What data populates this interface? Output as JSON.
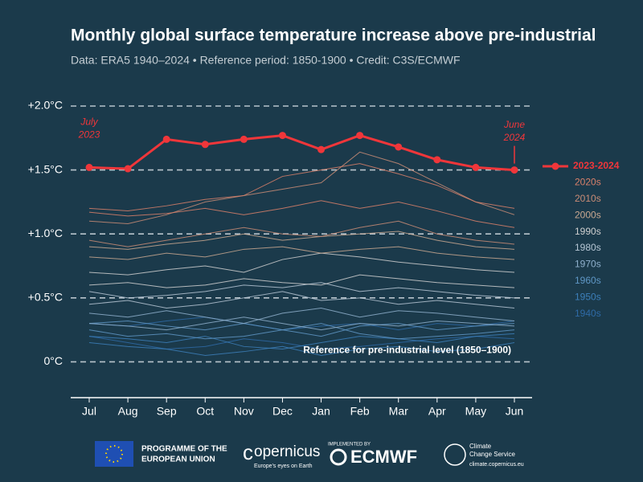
{
  "chart_data": {
    "type": "line",
    "title": "Monthly global surface temperature increase above pre-industrial",
    "subtitle": "Data: ERA5 1940–2024  •  Reference period: 1850-1900  •  Credit: C3S/ECMWF",
    "categories": [
      "Jul",
      "Aug",
      "Sep",
      "Oct",
      "Nov",
      "Dec",
      "Jan",
      "Feb",
      "Mar",
      "Apr",
      "May",
      "Jun"
    ],
    "ylim": [
      -0.28,
      2.0
    ],
    "yticks": [
      {
        "value": 0,
        "label": "0°C"
      },
      {
        "value": 0.5,
        "label": "+0.5°C"
      },
      {
        "value": 1.0,
        "label": "+1.0°C"
      },
      {
        "value": 1.5,
        "label": "+1.5°C"
      },
      {
        "value": 2.0,
        "label": "+2.0°C"
      }
    ],
    "grid": true,
    "legend": "right",
    "annotations": {
      "start": [
        "July",
        "2023"
      ],
      "end": [
        "June",
        "2024"
      ],
      "reference": "Reference for pre-industrial level (1850–1900)"
    },
    "series": [
      {
        "name": "2023-2024",
        "color": "#f0363a",
        "values": [
          1.52,
          1.51,
          1.74,
          1.7,
          1.74,
          1.77,
          1.66,
          1.77,
          1.68,
          1.58,
          1.52,
          1.5
        ]
      },
      {
        "name": "2020s",
        "color": "#d9806a",
        "lines": [
          [
            1.2,
            1.18,
            1.22,
            1.27,
            1.3,
            1.45,
            1.5,
            1.55,
            1.47,
            1.38,
            1.25,
            1.2
          ],
          [
            1.17,
            1.14,
            1.16,
            1.2,
            1.15,
            1.2,
            1.26,
            1.2,
            1.25,
            1.18,
            1.1,
            1.05
          ]
        ]
      },
      {
        "name": "2010s",
        "color": "#c98c76",
        "lines": [
          [
            1.1,
            1.08,
            1.15,
            1.25,
            1.3,
            1.35,
            1.4,
            1.64,
            1.55,
            1.4,
            1.25,
            1.15
          ],
          [
            0.95,
            0.9,
            0.95,
            1.0,
            1.05,
            1.0,
            0.98,
            1.05,
            1.1,
            1.0,
            0.95,
            0.92
          ]
        ]
      },
      {
        "name": "2000s",
        "color": "#c9a891",
        "lines": [
          [
            0.9,
            0.88,
            0.92,
            0.95,
            1.0,
            0.95,
            0.98,
            1.0,
            1.02,
            0.95,
            0.9,
            0.88
          ],
          [
            0.82,
            0.8,
            0.85,
            0.82,
            0.88,
            0.9,
            0.85,
            0.88,
            0.9,
            0.85,
            0.82,
            0.8
          ]
        ]
      },
      {
        "name": "1990s",
        "color": "#d0d0d0",
        "lines": [
          [
            0.7,
            0.68,
            0.72,
            0.75,
            0.7,
            0.8,
            0.85,
            0.82,
            0.78,
            0.75,
            0.72,
            0.7
          ],
          [
            0.6,
            0.62,
            0.58,
            0.6,
            0.65,
            0.62,
            0.6,
            0.68,
            0.65,
            0.62,
            0.6,
            0.58
          ]
        ]
      },
      {
        "name": "1980s",
        "color": "#b7c7d5",
        "lines": [
          [
            0.55,
            0.5,
            0.52,
            0.55,
            0.6,
            0.58,
            0.62,
            0.55,
            0.58,
            0.55,
            0.52,
            0.5
          ],
          [
            0.45,
            0.48,
            0.42,
            0.45,
            0.5,
            0.55,
            0.48,
            0.5,
            0.45,
            0.48,
            0.45,
            0.42
          ]
        ]
      },
      {
        "name": "1970s",
        "color": "#8fb0cc",
        "lines": [
          [
            0.38,
            0.35,
            0.4,
            0.35,
            0.3,
            0.38,
            0.42,
            0.35,
            0.4,
            0.38,
            0.35,
            0.32
          ],
          [
            0.3,
            0.28,
            0.25,
            0.3,
            0.35,
            0.3,
            0.25,
            0.3,
            0.28,
            0.32,
            0.3,
            0.28
          ]
        ]
      },
      {
        "name": "1960s",
        "color": "#5f97c6",
        "lines": [
          [
            0.3,
            0.32,
            0.28,
            0.25,
            0.3,
            0.25,
            0.2,
            0.28,
            0.3,
            0.25,
            0.28,
            0.3
          ],
          [
            0.25,
            0.2,
            0.22,
            0.18,
            0.2,
            0.25,
            0.3,
            0.22,
            0.18,
            0.2,
            0.22,
            0.25
          ]
        ]
      },
      {
        "name": "1950s",
        "color": "#3c7fba",
        "lines": [
          [
            0.2,
            0.18,
            0.15,
            0.2,
            0.12,
            0.1,
            0.15,
            0.2,
            0.18,
            0.15,
            0.2,
            0.22
          ],
          [
            0.15,
            0.12,
            0.1,
            0.05,
            0.08,
            0.12,
            0.05,
            0.1,
            0.12,
            0.08,
            0.1,
            0.15
          ]
        ]
      },
      {
        "name": "1940s",
        "color": "#2e6aa6",
        "lines": [
          [
            0.3,
            0.28,
            0.32,
            0.35,
            0.3,
            0.25,
            0.28,
            0.3,
            0.25,
            0.3,
            0.28,
            0.32
          ],
          [
            0.2,
            0.15,
            0.1,
            0.12,
            0.18,
            0.15,
            0.1,
            0.12,
            0.15,
            0.18,
            0.2,
            0.18
          ]
        ]
      }
    ]
  },
  "footer": {
    "eu": [
      "PROGRAMME OF THE",
      "EUROPEAN UNION"
    ],
    "copernicus": "opernicus",
    "copernicus_tagline": "Europe's eyes on Earth",
    "implemented": "IMPLEMENTED BY",
    "ecmwf": "ECMWF",
    "c3s": [
      "Climate",
      "Change Service"
    ],
    "url": "climate.copernicus.eu"
  }
}
